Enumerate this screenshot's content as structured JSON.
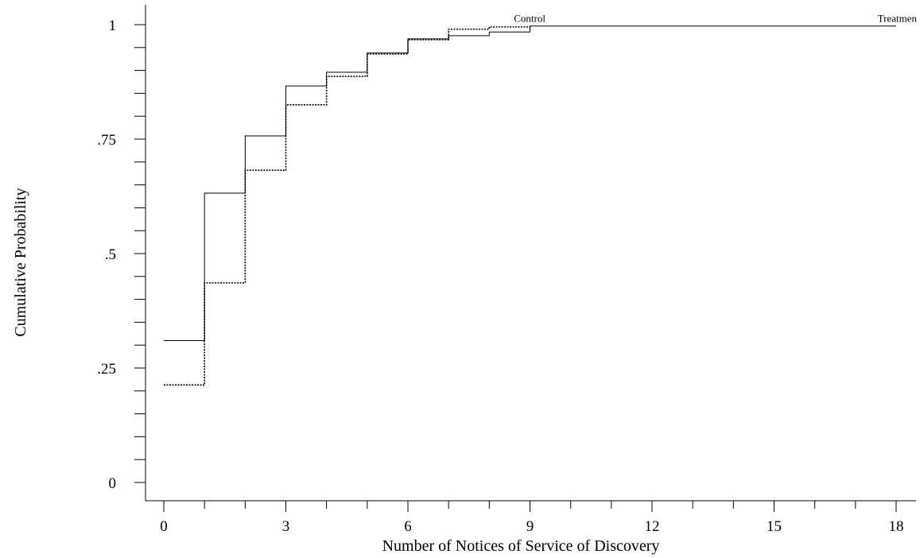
{
  "chart_data": {
    "type": "line",
    "step": true,
    "title": "",
    "xlabel": "Number of Notices of Service of Discovery",
    "ylabel": "Cumulative Probability",
    "xlim": [
      0,
      18
    ],
    "ylim": [
      0,
      1
    ],
    "x_ticks": [
      0,
      3,
      6,
      9,
      12,
      15,
      18
    ],
    "x_tick_labels": [
      "0",
      "3",
      "6",
      "9",
      "12",
      "15",
      "18"
    ],
    "x_minor_step": 1,
    "y_ticks": [
      0,
      0.25,
      0.5,
      0.75,
      1
    ],
    "y_tick_labels": [
      "0",
      ".25",
      ".5",
      ".75",
      "1"
    ],
    "y_minor_step": 0.05,
    "grid": false,
    "legend": "none",
    "series": [
      {
        "name": "Treatmen",
        "line_style": "solid",
        "x": [
          0,
          1,
          2,
          3,
          4,
          5,
          6,
          7,
          8,
          9,
          18
        ],
        "y": [
          0.31,
          0.632,
          0.757,
          0.866,
          0.896,
          0.938,
          0.969,
          0.976,
          0.984,
          0.997,
          0.997
        ]
      },
      {
        "name": "Control",
        "line_style": "dotted",
        "x": [
          0,
          1,
          2,
          3,
          4,
          5,
          6,
          7,
          8,
          9
        ],
        "y": [
          0.213,
          0.436,
          0.682,
          0.825,
          0.887,
          0.936,
          0.967,
          0.99,
          0.995,
          0.997
        ]
      }
    ]
  }
}
